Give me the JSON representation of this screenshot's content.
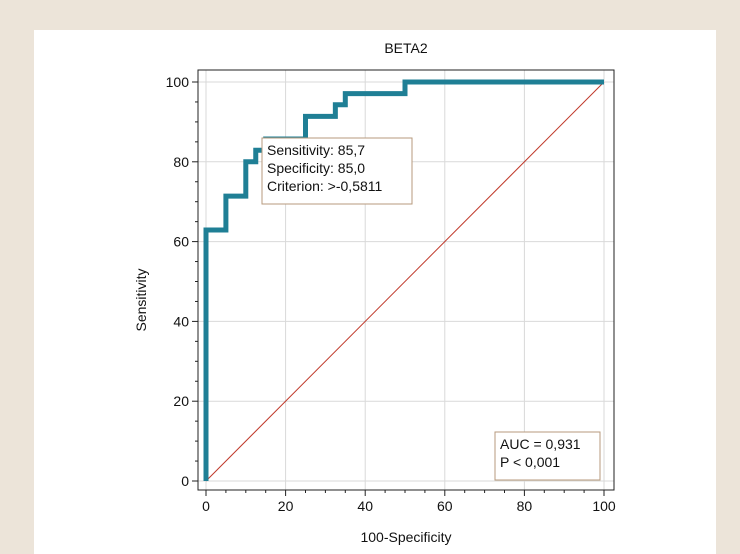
{
  "chart_data": {
    "type": "line",
    "title": "BETA2",
    "xlabel": "100-Specificity",
    "ylabel": "Sensitivity",
    "xlim": [
      0,
      100
    ],
    "ylim": [
      0,
      100
    ],
    "xticks": [
      "0",
      "20",
      "40",
      "60",
      "80",
      "100"
    ],
    "yticks": [
      "0",
      "20",
      "40",
      "60",
      "80",
      "100"
    ],
    "grid": true,
    "series": [
      {
        "kind": "roc-step",
        "color": "#1f7f95",
        "x": [
          0,
          0,
          0,
          5,
          5,
          10,
          10,
          12.5,
          12.5,
          15,
          15,
          25,
          25,
          32.5,
          32.5,
          35,
          35,
          50,
          50,
          100
        ],
        "y": [
          0,
          62.9,
          62.9,
          62.9,
          71.4,
          71.4,
          80.0,
          80.0,
          82.9,
          82.9,
          85.7,
          85.7,
          91.4,
          91.4,
          94.3,
          94.3,
          97.1,
          97.1,
          100,
          100
        ]
      },
      {
        "kind": "reference-diagonal",
        "color": "#c0392b",
        "x": [
          0,
          100
        ],
        "y": [
          0,
          100
        ]
      }
    ],
    "annotations": {
      "criterion_box": [
        "Sensitivity: 85,7",
        "Specificity: 85,0",
        "Criterion: >-0,5811"
      ],
      "auc_box": [
        "AUC = 0,931",
        "P < 0,001"
      ]
    }
  }
}
